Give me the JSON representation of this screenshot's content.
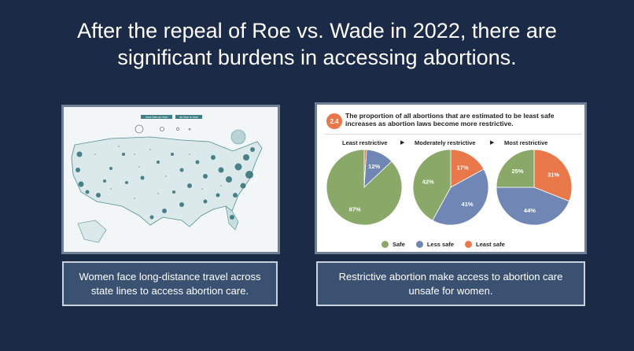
{
  "slide": {
    "title": "After the repeal of Roe vs. Wade in 2022, there are significant burdens in accessing abortions."
  },
  "map": {
    "legend_labels": [
      "more than an hour",
      "an hour or less"
    ]
  },
  "chart_panel": {
    "number": "2.4",
    "title": "The proportion of all abortions that are estimated to be least safe increases as abortion laws become more restrictive.",
    "column_labels": [
      "Least restrictive",
      "Moderately restrictive",
      "Most restrictive"
    ],
    "arrow_glyph": "▶"
  },
  "chart_data": {
    "type": "pie",
    "colors": {
      "Safe": "#8aa867",
      "Less safe": "#7087b6",
      "Least safe": "#e8774a"
    },
    "legend": [
      "Safe",
      "Less safe",
      "Least safe"
    ],
    "pies": [
      {
        "name": "Least restrictive",
        "slices": [
          {
            "label": "Safe",
            "value": 87
          },
          {
            "label": "Less safe",
            "value": 12
          },
          {
            "label": "Least safe",
            "value": 1
          }
        ]
      },
      {
        "name": "Moderately restrictive",
        "slices": [
          {
            "label": "Safe",
            "value": 42
          },
          {
            "label": "Less safe",
            "value": 41
          },
          {
            "label": "Least safe",
            "value": 17
          }
        ]
      },
      {
        "name": "Most restrictive",
        "slices": [
          {
            "label": "Safe",
            "value": 25
          },
          {
            "label": "Less safe",
            "value": 44
          },
          {
            "label": "Least safe",
            "value": 31
          }
        ]
      }
    ]
  },
  "captions": {
    "left": "Women face long-distance travel across state lines to access abortion care.",
    "right": "Restrictive abortion make access to abortion care unsafe for women."
  }
}
